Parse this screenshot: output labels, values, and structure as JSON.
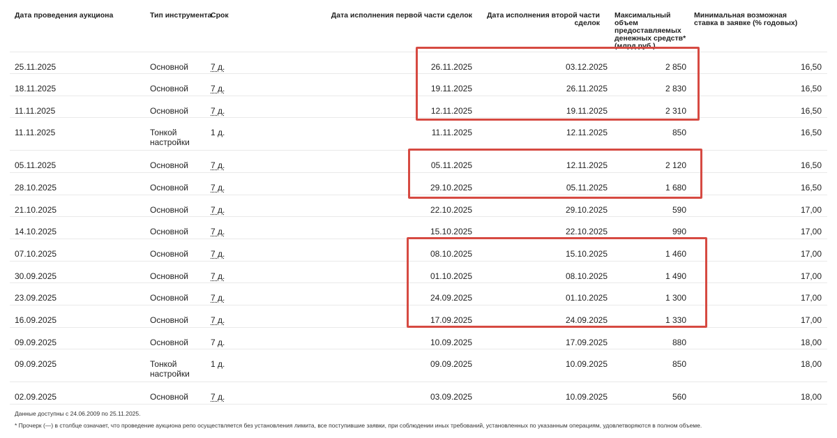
{
  "columns": {
    "auction_date": "Дата проведения аукциона",
    "instrument_type": "Тип инструмента",
    "term": "Срок",
    "first_leg_date": "Дата исполнения первой части сделок",
    "second_leg_date": "Дата исполнения второй части сделок",
    "max_volume": "Максимальный объем предоставляемых денежных средств* (млрд руб.)",
    "min_rate": "Минимальная возможная ставка в заявке (% годовых)"
  },
  "rows": [
    {
      "auction_date": "25.11.2025",
      "instrument_type": "Основной",
      "term": "7 д.",
      "first_leg_date": "26.11.2025",
      "second_leg_date": "03.12.2025",
      "max_volume": "2 850",
      "min_rate": "16,50"
    },
    {
      "auction_date": "18.11.2025",
      "instrument_type": "Основной",
      "term": "7 д.",
      "first_leg_date": "19.11.2025",
      "second_leg_date": "26.11.2025",
      "max_volume": "2 830",
      "min_rate": "16,50"
    },
    {
      "auction_date": "11.11.2025",
      "instrument_type": "Основной",
      "term": "7 д.",
      "first_leg_date": "12.11.2025",
      "second_leg_date": "19.11.2025",
      "max_volume": "2 310",
      "min_rate": "16,50"
    },
    {
      "auction_date": "11.11.2025",
      "instrument_type": "Тонкой настройки",
      "term": "1 д.",
      "first_leg_date": "11.11.2025",
      "second_leg_date": "12.11.2025",
      "max_volume": "850",
      "min_rate": "16,50"
    },
    {
      "auction_date": "05.11.2025",
      "instrument_type": "Основной",
      "term": "7 д.",
      "first_leg_date": "05.11.2025",
      "second_leg_date": "12.11.2025",
      "max_volume": "2 120",
      "min_rate": "16,50"
    },
    {
      "auction_date": "28.10.2025",
      "instrument_type": "Основной",
      "term": "7 д.",
      "first_leg_date": "29.10.2025",
      "second_leg_date": "05.11.2025",
      "max_volume": "1 680",
      "min_rate": "16,50"
    },
    {
      "auction_date": "21.10.2025",
      "instrument_type": "Основной",
      "term": "7 д.",
      "first_leg_date": "22.10.2025",
      "second_leg_date": "29.10.2025",
      "max_volume": "590",
      "min_rate": "17,00"
    },
    {
      "auction_date": "14.10.2025",
      "instrument_type": "Основной",
      "term": "7 д.",
      "first_leg_date": "15.10.2025",
      "second_leg_date": "22.10.2025",
      "max_volume": "990",
      "min_rate": "17,00"
    },
    {
      "auction_date": "07.10.2025",
      "instrument_type": "Основной",
      "term": "7 д.",
      "first_leg_date": "08.10.2025",
      "second_leg_date": "15.10.2025",
      "max_volume": "1 460",
      "min_rate": "17,00"
    },
    {
      "auction_date": "30.09.2025",
      "instrument_type": "Основной",
      "term": "7 д.",
      "first_leg_date": "01.10.2025",
      "second_leg_date": "08.10.2025",
      "max_volume": "1 490",
      "min_rate": "17,00"
    },
    {
      "auction_date": "23.09.2025",
      "instrument_type": "Основной",
      "term": "7 д.",
      "first_leg_date": "24.09.2025",
      "second_leg_date": "01.10.2025",
      "max_volume": "1 300",
      "min_rate": "17,00"
    },
    {
      "auction_date": "16.09.2025",
      "instrument_type": "Основной",
      "term": "7 д.",
      "first_leg_date": "17.09.2025",
      "second_leg_date": "24.09.2025",
      "max_volume": "1 330",
      "min_rate": "17,00"
    },
    {
      "auction_date": "09.09.2025",
      "instrument_type": "Основной",
      "term": "7 д.",
      "first_leg_date": "10.09.2025",
      "second_leg_date": "17.09.2025",
      "max_volume": "880",
      "min_rate": "18,00"
    },
    {
      "auction_date": "09.09.2025",
      "instrument_type": "Тонкой настройки",
      "term": "1 д.",
      "first_leg_date": "09.09.2025",
      "second_leg_date": "10.09.2025",
      "max_volume": "850",
      "min_rate": "18,00"
    },
    {
      "auction_date": "02.09.2025",
      "instrument_type": "Основной",
      "term": "7 д.",
      "first_leg_date": "03.09.2025",
      "second_leg_date": "10.09.2025",
      "max_volume": "560",
      "min_rate": "18,00"
    }
  ],
  "footnotes": {
    "availability": "Данные доступны с 24.06.2009 по 25.11.2025.",
    "dash_note": "* Прочерк (—) в столбце означает, что проведение аукциона репо осуществляется без установления лимита, все поступившие заявки, при соблюдении иных требований, установленных по указанным операциям, удовлетворяются в полном объеме."
  },
  "highlight_color": "#d64a42"
}
